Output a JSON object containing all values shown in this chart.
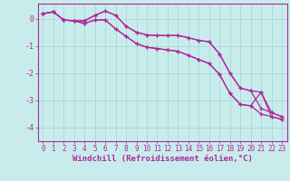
{
  "background_color": "#c8ecec",
  "grid_color": "#a8d8d8",
  "line_color": "#b02898",
  "xlabel": "Windchill (Refroidissement éolien,°C)",
  "xlabel_fontsize": 6.5,
  "tick_fontsize": 5.5,
  "xlim": [
    -0.5,
    23.5
  ],
  "ylim": [
    -4.5,
    0.55
  ],
  "yticks": [
    0,
    -1,
    -2,
    -3,
    -4
  ],
  "xticks": [
    0,
    1,
    2,
    3,
    4,
    5,
    6,
    7,
    8,
    9,
    10,
    11,
    12,
    13,
    14,
    15,
    16,
    17,
    18,
    19,
    20,
    21,
    22,
    23
  ],
  "series": [
    [
      0.18,
      0.25,
      -0.05,
      -0.08,
      -0.08,
      0.12,
      0.28,
      0.12,
      -0.28,
      -0.5,
      -0.6,
      -0.62,
      -0.62,
      -0.62,
      -0.7,
      -0.8,
      -0.85,
      -1.3,
      -2.0,
      -2.55,
      -2.65,
      -3.3,
      -3.45,
      -3.6
    ],
    [
      0.18,
      0.25,
      -0.05,
      -0.08,
      -0.08,
      0.12,
      0.28,
      0.12,
      -0.28,
      -0.5,
      -0.6,
      -0.62,
      -0.62,
      -0.62,
      -0.7,
      -0.8,
      -0.85,
      -1.3,
      -2.0,
      -2.55,
      -2.65,
      -2.7,
      -3.45,
      -3.6
    ],
    [
      0.18,
      0.25,
      -0.05,
      -0.08,
      -0.18,
      -0.05,
      -0.05,
      -0.38,
      -0.65,
      -0.92,
      -1.05,
      -1.1,
      -1.15,
      -1.2,
      -1.35,
      -1.5,
      -1.65,
      -2.05,
      -2.75,
      -3.15,
      -3.2,
      -3.5,
      -3.6,
      -3.7
    ],
    [
      0.18,
      0.25,
      -0.05,
      -0.08,
      -0.18,
      -0.05,
      -0.05,
      -0.38,
      -0.65,
      -0.92,
      -1.05,
      -1.1,
      -1.15,
      -1.2,
      -1.35,
      -1.5,
      -1.65,
      -2.05,
      -2.75,
      -3.15,
      -3.2,
      -2.7,
      -3.6,
      -3.7
    ]
  ]
}
